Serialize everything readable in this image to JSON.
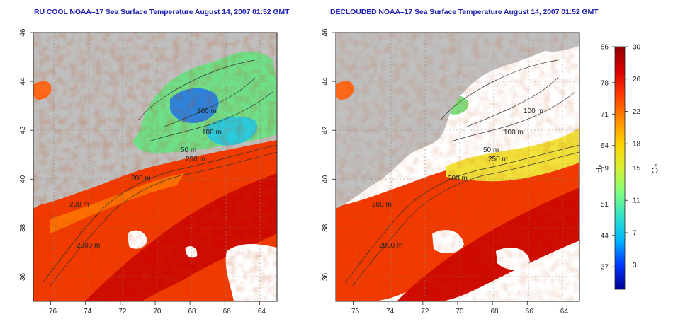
{
  "panels": [
    {
      "id": "left",
      "title": "RU COOL NOAA–17 Sea Surface Temperature August 14, 2007 01:52 GMT",
      "contour_labels": [
        "100 m",
        "100 m",
        "50 m",
        "250 m",
        "200 m",
        "200 m",
        "2000 m"
      ]
    },
    {
      "id": "right",
      "title": "DECLOUDED NOAA–17 Sea Surface Temperature August 14, 2007 01:52 GMT",
      "contour_labels": [
        "100 m",
        "100 m",
        "50 m",
        "250 m",
        "200 m",
        "200 m",
        "2000 m"
      ]
    }
  ],
  "map_axes": {
    "lon_ticks": [
      "−76",
      "−74",
      "−72",
      "−70",
      "−68",
      "−66",
      "−64"
    ],
    "lat_ticks": [
      "36",
      "38",
      "40",
      "42",
      "44",
      "46"
    ],
    "lon_range": [
      -77,
      -63
    ],
    "lat_range": [
      35,
      46
    ]
  },
  "colorbar": {
    "fahrenheit_ticks": [
      "86",
      "78",
      "71",
      "64",
      "59",
      "51",
      "44",
      "37"
    ],
    "celsius_ticks": [
      "30",
      "26",
      "22",
      "18",
      "15",
      "11",
      "7",
      "3"
    ],
    "fahrenheit_unit": "°F",
    "celsius_unit": "°C",
    "celsius_range": [
      0,
      30
    ],
    "colors": [
      "#00008f",
      "#0038ff",
      "#00b4ff",
      "#2de0c8",
      "#7fff7f",
      "#d8f030",
      "#ffd400",
      "#ff8a00",
      "#ff3c00",
      "#d90000",
      "#8f0000"
    ]
  },
  "colors": {
    "land": "#bfbfbf",
    "cloud": "#ffffff",
    "title": "#1d1db0",
    "warm_water": "#f02a00",
    "gulf_stream": "#cc0000"
  }
}
